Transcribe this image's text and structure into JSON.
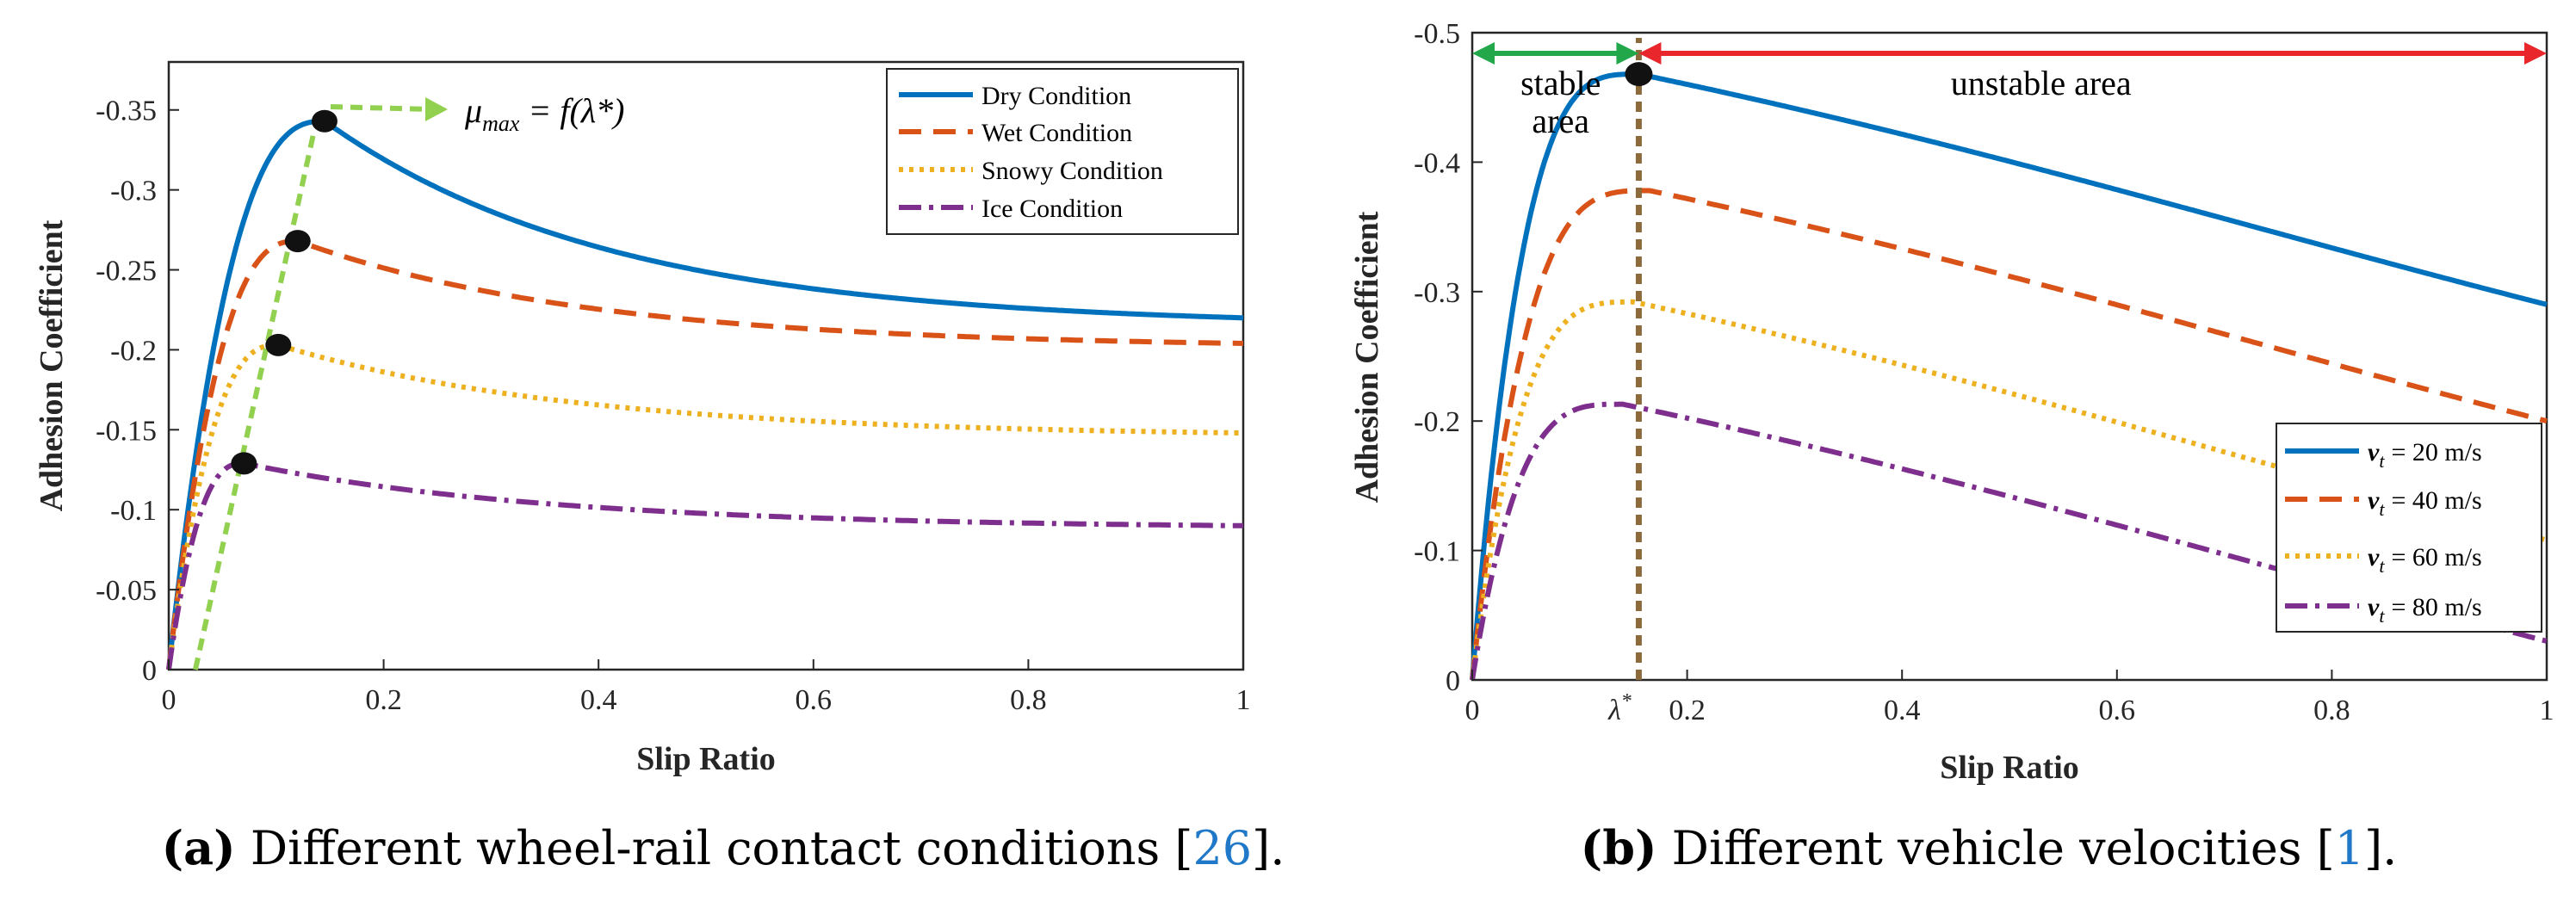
{
  "chart_data": [
    {
      "type": "line",
      "xlabel": "Slip Ratio",
      "ylabel": "Adhesion Coefficient",
      "xlim": [
        0,
        1
      ],
      "ylim": [
        0,
        -0.38
      ],
      "x_ticks": [
        "0",
        "0.2",
        "0.4",
        "0.6",
        "0.8",
        "1"
      ],
      "y_ticks": [
        "0",
        "-0.05",
        "-0.1",
        "-0.15",
        "-0.2",
        "-0.25",
        "-0.3",
        "-0.35"
      ],
      "legend_position": "top-right",
      "series": [
        {
          "name": "Dry Condition",
          "color": "#0072BD",
          "style": "solid",
          "peak_x": 0.145,
          "peak_y": -0.343,
          "end_y": -0.22
        },
        {
          "name": "Wet Condition",
          "color": "#D95319",
          "style": "dashed",
          "peak_x": 0.12,
          "peak_y": -0.268,
          "end_y": -0.204
        },
        {
          "name": "Snowy Condition",
          "color": "#EDB120",
          "style": "dotted",
          "peak_x": 0.102,
          "peak_y": -0.203,
          "end_y": -0.148
        },
        {
          "name": "Ice Condition",
          "color": "#7E2F8E",
          "style": "dashdot",
          "peak_x": 0.07,
          "peak_y": -0.129,
          "end_y": -0.09
        }
      ],
      "peak_points": [
        {
          "x": 0.07,
          "y": -0.129
        },
        {
          "x": 0.102,
          "y": -0.203
        },
        {
          "x": 0.12,
          "y": -0.268
        },
        {
          "x": 0.145,
          "y": -0.343
        }
      ],
      "annotation": {
        "label": "μ",
        "subscript": "max",
        "equation": " = f(λ*)",
        "color": "#92D050"
      },
      "caption": {
        "tag": "(a)",
        "text": " Different wheel-rail contact conditions [",
        "ref": "26",
        "end": "]."
      }
    },
    {
      "type": "line",
      "xlabel": "Slip Ratio",
      "ylabel": "Adhesion Coefficient",
      "xlim": [
        0,
        1
      ],
      "ylim": [
        0,
        -0.5
      ],
      "x_ticks": [
        "0",
        "0.2",
        "0.4",
        "0.6",
        "0.8",
        "1"
      ],
      "y_ticks": [
        "0",
        "-0.1",
        "-0.2",
        "-0.3",
        "-0.4",
        "-0.5"
      ],
      "legend_position": "bottom-right",
      "series": [
        {
          "name": "= 20 m/s",
          "symbol": "v",
          "subscript": "t",
          "color": "#0072BD",
          "style": "solid",
          "peak_x": 0.155,
          "peak_y": -0.468,
          "end_y": -0.29
        },
        {
          "name": "= 40 m/s",
          "symbol": "v",
          "subscript": "t",
          "color": "#D95319",
          "style": "dashed",
          "peak_x": 0.165,
          "peak_y": -0.378,
          "end_y": -0.2
        },
        {
          "name": "= 60 m/s",
          "symbol": "v",
          "subscript": "t",
          "color": "#EDB120",
          "style": "dotted",
          "peak_x": 0.15,
          "peak_y": -0.292,
          "end_y": -0.108
        },
        {
          "name": "= 80 m/s",
          "symbol": "v",
          "subscript": "t",
          "color": "#7E2F8E",
          "style": "dashdot",
          "peak_x": 0.14,
          "peak_y": -0.213,
          "end_y": -0.03
        }
      ],
      "critical_slip": {
        "x": 0.155,
        "label": "λ",
        "sup": "*",
        "peak_y": -0.468
      },
      "regions": [
        {
          "label_lines": [
            "stable",
            "area"
          ],
          "x_from": 0,
          "x_to": 0.155,
          "color": "#22A84A"
        },
        {
          "label_lines": [
            "unstable area"
          ],
          "x_from": 0.155,
          "x_to": 1,
          "color": "#E8262B"
        }
      ],
      "caption": {
        "tag": "(b)",
        "text": " Different vehicle velocities [",
        "ref": "1",
        "end": "]."
      }
    }
  ]
}
